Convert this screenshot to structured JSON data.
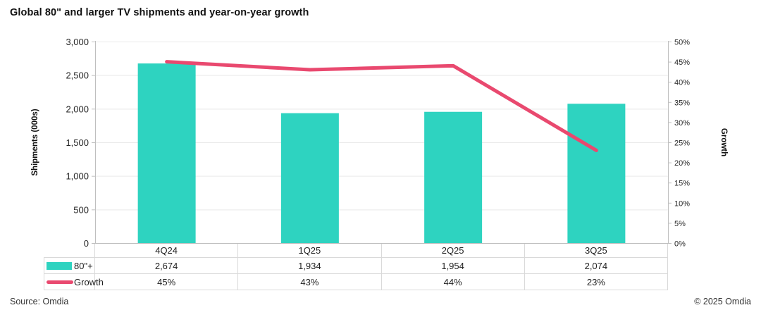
{
  "title": "Global 80\" and larger TV shipments and year-on-year growth",
  "chart_data": {
    "type": "bar+line combo",
    "categories": [
      "4Q24",
      "1Q25",
      "2Q25",
      "3Q25"
    ],
    "series": [
      {
        "name": "80\"+",
        "type": "bar",
        "axis": "left",
        "values": [
          2674,
          1934,
          1954,
          2074
        ],
        "color": "#2ed3c0"
      },
      {
        "name": "Growth",
        "type": "line",
        "axis": "right",
        "values": [
          45,
          43,
          44,
          23
        ],
        "color": "#e9496f"
      }
    ],
    "left_axis": {
      "label": "Shipments (000s)",
      "min": 0,
      "max": 3000,
      "step": 500,
      "tick_labels": [
        "0",
        "500",
        "1,000",
        "1,500",
        "2,000",
        "2,500",
        "3,000"
      ]
    },
    "right_axis": {
      "label": "Growth",
      "min": 0,
      "max": 50,
      "step": 5,
      "tick_labels": [
        "0%",
        "5%",
        "10%",
        "15%",
        "20%",
        "25%",
        "30%",
        "35%",
        "40%",
        "45%",
        "50%"
      ]
    },
    "grid": true,
    "legend_position": "data-table-left"
  },
  "table": {
    "legend": [
      {
        "label": "80\"+",
        "swatch": "bar"
      },
      {
        "label": "Growth",
        "swatch": "line"
      }
    ],
    "rows": [
      {
        "cells": [
          "2,674",
          "1,934",
          "1,954",
          "2,074"
        ]
      },
      {
        "cells": [
          "45%",
          "43%",
          "44%",
          "23%"
        ]
      }
    ]
  },
  "footer": {
    "source": "Source: Omdia",
    "copyright": "© 2025 Omdia"
  },
  "colors": {
    "bar": "#2ed3c0",
    "line": "#e9496f",
    "grid": "#e9e9e9",
    "axis": "#bfbfbf",
    "table_border": "#d9d9d9",
    "text": "#262626"
  }
}
